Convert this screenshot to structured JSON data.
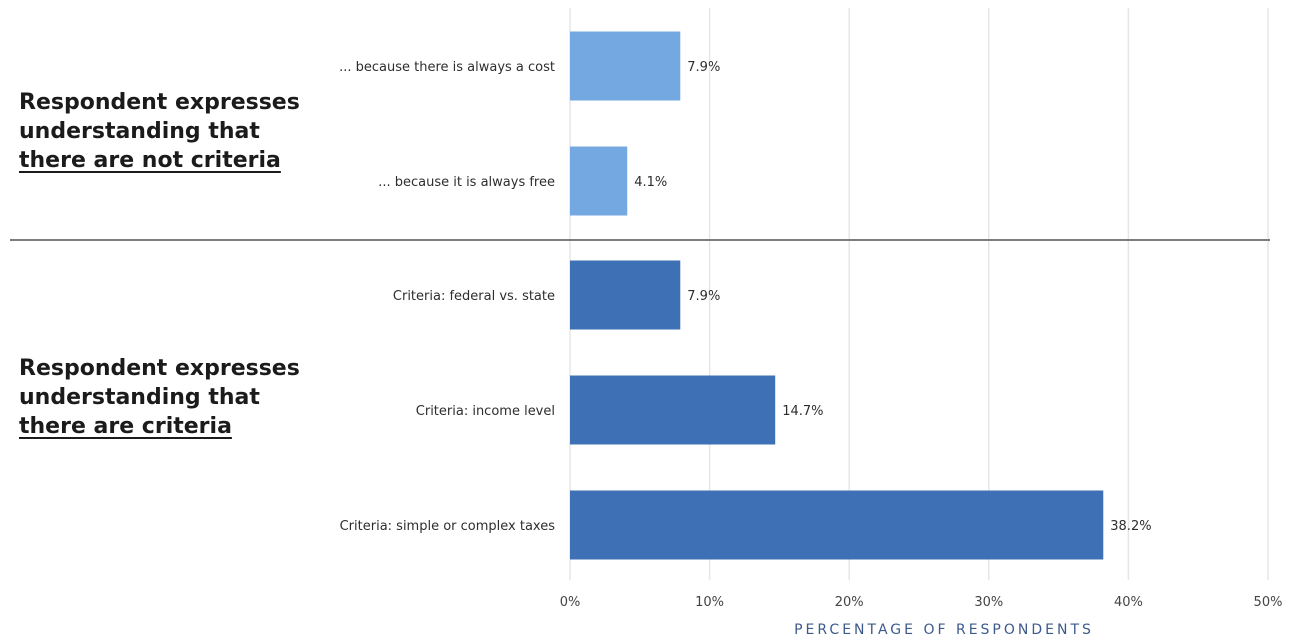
{
  "chart_data": {
    "type": "bar",
    "orientation": "horizontal",
    "xlabel": "PERCENTAGE OF RESPONDENTS",
    "xlim": [
      0,
      50
    ],
    "xticks": [
      "0%",
      "10%",
      "20%",
      "30%",
      "40%",
      "50%"
    ],
    "grid": true,
    "groups": [
      {
        "label_line1": "Respondent expresses",
        "label_line2": "understanding that",
        "label_line3": "there are not criteria",
        "color": "#74a8e1",
        "categories": [
          "... because there is always a cost",
          "... because it is always free"
        ],
        "values": [
          7.9,
          4.1
        ],
        "value_labels": [
          "7.9%",
          "4.1%"
        ]
      },
      {
        "label_line1": "Respondent expresses",
        "label_line2": "understanding that",
        "label_line3": "there are criteria",
        "color": "#3d70b5",
        "categories": [
          "Criteria: federal vs. state",
          "Criteria: income level",
          "Criteria: simple or complex taxes"
        ],
        "values": [
          7.9,
          14.7,
          38.2
        ],
        "value_labels": [
          "7.9%",
          "14.7%",
          "38.2%"
        ]
      }
    ]
  }
}
